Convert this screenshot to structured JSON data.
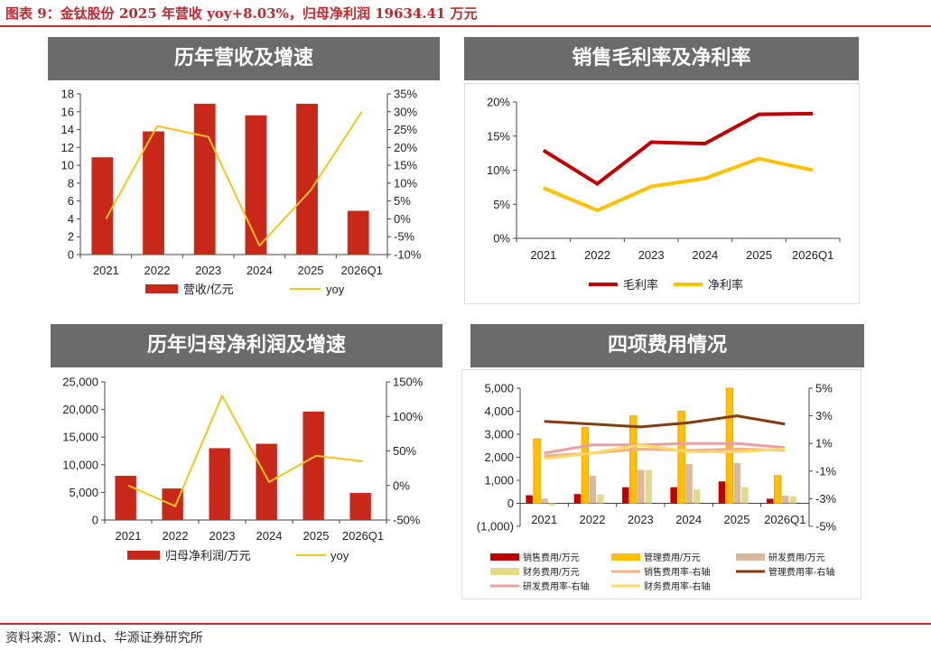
{
  "figure_title": "图表 9：金钛股份 2025 年营收 yoy+8.03%，归母净利润 19634.41 万元",
  "source": "资料来源：Wind、华源证券研究所",
  "colors": {
    "accent": "#c0282d",
    "bar": "#c8281a",
    "yoy": "#f5c518",
    "panel_header": "#6b6b6b"
  },
  "panels": {
    "p1": {
      "title": "历年营收及增速"
    },
    "p2": {
      "title": "销售毛利率及净利率"
    },
    "p3": {
      "title": "历年归母净利润及增速"
    },
    "p4": {
      "title": "四项费用情况"
    }
  },
  "chart_data": [
    {
      "type": "bar",
      "categories": [
        "2021",
        "2022",
        "2023",
        "2024",
        "2025",
        "2026Q1"
      ],
      "series": [
        {
          "name": "营收/亿元",
          "type": "bar",
          "axis": "left",
          "values": [
            10.9,
            13.8,
            16.9,
            15.6,
            16.9,
            4.9
          ]
        },
        {
          "name": "yoy",
          "type": "line",
          "axis": "right",
          "values": [
            0.0,
            26.0,
            23.0,
            -7.5,
            8.03,
            30.0
          ]
        }
      ],
      "ylim": [
        0,
        18
      ],
      "yticks": [
        "0",
        "2",
        "4",
        "6",
        "8",
        "10",
        "12",
        "14",
        "16",
        "18"
      ],
      "y2lim": [
        -10,
        35
      ],
      "y2ticks": [
        "-10%",
        "-5%",
        "0%",
        "5%",
        "10%",
        "15%",
        "20%",
        "25%",
        "30%",
        "35%"
      ],
      "legend_position": "bottom"
    },
    {
      "type": "line",
      "categories": [
        "2021",
        "2022",
        "2023",
        "2024",
        "2025",
        "2026Q1"
      ],
      "series": [
        {
          "name": "毛利率",
          "values": [
            12.9,
            8.0,
            14.1,
            13.9,
            18.2,
            18.3
          ]
        },
        {
          "name": "净利率",
          "values": [
            7.4,
            4.1,
            7.6,
            8.8,
            11.7,
            10.0
          ]
        }
      ],
      "ylim": [
        0,
        20
      ],
      "yticks": [
        "0%",
        "5%",
        "10%",
        "15%",
        "20%"
      ],
      "legend_position": "bottom"
    },
    {
      "type": "bar",
      "categories": [
        "2021",
        "2022",
        "2023",
        "2024",
        "2025",
        "2026Q1"
      ],
      "series": [
        {
          "name": "归母净利润/万元",
          "type": "bar",
          "axis": "left",
          "values": [
            8000,
            5700,
            13000,
            13800,
            19634.41,
            4900
          ]
        },
        {
          "name": "yoy",
          "type": "line",
          "axis": "right",
          "values": [
            0,
            -30,
            130,
            5,
            43,
            35
          ]
        }
      ],
      "ylim": [
        0,
        25000
      ],
      "yticks": [
        "0",
        "5,000",
        "10,000",
        "15,000",
        "20,000",
        "25,000"
      ],
      "y2lim": [
        -50,
        150
      ],
      "y2ticks": [
        "-50%",
        "0%",
        "50%",
        "100%",
        "150%"
      ],
      "legend_position": "bottom"
    },
    {
      "type": "bar",
      "categories": [
        "2021",
        "2022",
        "2023",
        "2024",
        "2025",
        "2026Q1"
      ],
      "series": [
        {
          "name": "销售费用/万元",
          "type": "bar",
          "axis": "left",
          "color": "#c00000",
          "values": [
            350,
            400,
            700,
            700,
            950,
            200
          ]
        },
        {
          "name": "管理费用/万元",
          "type": "bar",
          "axis": "left",
          "color": "#ffc000",
          "values": [
            2800,
            3300,
            3800,
            4000,
            5000,
            1200
          ]
        },
        {
          "name": "研发费用/万元",
          "type": "bar",
          "axis": "left",
          "color": "#d9b99b",
          "values": [
            200,
            1200,
            1450,
            1700,
            1750,
            330
          ]
        },
        {
          "name": "财务费用/万元",
          "type": "bar",
          "axis": "left",
          "color": "#e3d98c",
          "values": [
            -100,
            380,
            1450,
            600,
            700,
            300
          ]
        },
        {
          "name": "销售费用率-右轴",
          "type": "line",
          "axis": "right",
          "color": "#f4b183",
          "values": [
            0.1,
            0.3,
            0.6,
            0.5,
            0.6,
            0.5
          ]
        },
        {
          "name": "管理费用率-右轴",
          "type": "line",
          "axis": "right",
          "color": "#843c0c",
          "values": [
            2.6,
            2.4,
            2.2,
            2.5,
            3.0,
            2.4
          ]
        },
        {
          "name": "研发费用率-右轴",
          "type": "line",
          "axis": "right",
          "color": "#e6a0a0",
          "values": [
            0.3,
            0.9,
            0.9,
            1.0,
            1.0,
            0.7
          ]
        },
        {
          "name": "财务费用率-右轴",
          "type": "line",
          "axis": "right",
          "color": "#ffd966",
          "values": [
            -0.1,
            0.3,
            0.9,
            0.4,
            0.4,
            0.6
          ]
        }
      ],
      "ylim": [
        -1000,
        5000
      ],
      "yticks": [
        "(1,000)",
        "0",
        "1,000",
        "2,000",
        "3,000",
        "4,000",
        "5,000"
      ],
      "y2lim": [
        -5,
        5
      ],
      "y2ticks": [
        "-5%",
        "-3%",
        "-1%",
        "1%",
        "3%",
        "5%"
      ],
      "legend_position": "bottom"
    }
  ]
}
